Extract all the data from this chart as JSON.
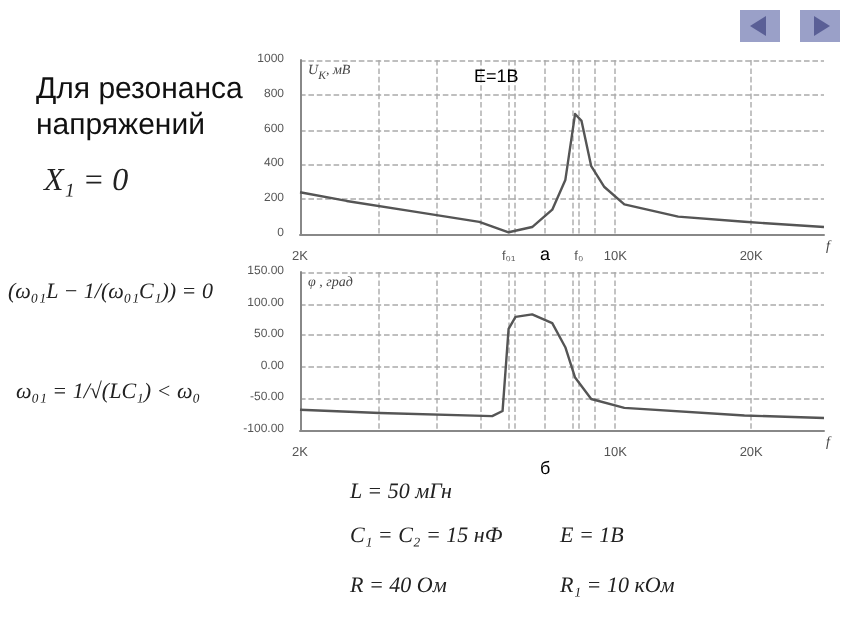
{
  "chart_data": [
    {
      "type": "line",
      "title": "Для резонанса напряжений",
      "ylabel": "U$_{K}$, мВ",
      "xlabel": "f",
      "annotations": [
        "E=1В",
        "а",
        "X₁ = 0",
        "(ω₀₁L − 1/(ω₀₁C₁)) = 0",
        "ω₀₁ = 1/√(LC₁) < ω₀"
      ],
      "x": [
        2000,
        2537,
        3557,
        4993,
        5799,
        6540,
        7246,
        7746,
        8142,
        8414,
        8841,
        9455,
        10468,
        13780,
        19322,
        29000
      ],
      "series": [
        {
          "color": "#555555",
          "values": [
            240,
            190,
            130,
            70,
            10,
            40,
            140,
            310,
            690,
            650,
            390,
            270,
            170,
            100,
            70,
            40
          ]
        }
      ],
      "xlim": [
        2000,
        29000
      ],
      "log": "x",
      "xticks": [
        {
          "value": 2000,
          "label": "2K"
        },
        {
          "value": 3000,
          "label": null
        },
        {
          "value": 4000,
          "label": null
        },
        {
          "value": 5000,
          "label": null
        },
        {
          "value": 5800,
          "label": "f₀₁"
        },
        {
          "value": 6000,
          "label": null
        },
        {
          "value": 7000,
          "label": null
        },
        {
          "value": 8000,
          "label": null
        },
        {
          "value": 8300,
          "label": "f₀"
        },
        {
          "value": 9000,
          "label": null
        },
        {
          "value": 10000,
          "label": "10K"
        },
        {
          "value": 20000,
          "label": "20K"
        }
      ],
      "ylim": [
        0,
        1000
      ],
      "yticks": [
        0,
        200,
        400,
        600,
        800,
        1000
      ],
      "grid": true,
      "marker": "none",
      "line_style": "solid"
    },
    {
      "type": "line",
      "ylabel": "φ , град",
      "xlabel": "f",
      "annotations": [
        "б",
        "L = 50 мГн",
        "C₁ = C₂ = 15 нФ",
        "E = 1В",
        "R = 40 Ом",
        "R₁ = 10 кОм"
      ],
      "x": [
        2000,
        3003,
        5333,
        5623,
        5799,
        6008,
        6540,
        7246,
        7746,
        8142,
        8841,
        10468,
        19322,
        29000
      ],
      "series": [
        {
          "color": "#555555",
          "values": [
            -68,
            -73,
            -78,
            -70,
            60,
            79,
            83,
            69,
            31,
            -17,
            -51,
            -65,
            -77,
            -81
          ]
        }
      ],
      "xlim": [
        2000,
        29000
      ],
      "log": "x",
      "xticks": [
        {
          "value": 2000,
          "label": "2K"
        },
        {
          "value": 3000,
          "label": null
        },
        {
          "value": 4000,
          "label": null
        },
        {
          "value": 5000,
          "label": null
        },
        {
          "value": 5800,
          "label": null
        },
        {
          "value": 6000,
          "label": null
        },
        {
          "value": 7000,
          "label": null
        },
        {
          "value": 8000,
          "label": null
        },
        {
          "value": 8300,
          "label": null
        },
        {
          "value": 9000,
          "label": null
        },
        {
          "value": 10000,
          "label": "10K"
        },
        {
          "value": 20000,
          "label": "20K"
        }
      ],
      "ylim": [
        -100,
        150
      ],
      "yticks": [
        {
          "value": -100,
          "label": "-100.00"
        },
        {
          "value": -50,
          "label": "-50.00"
        },
        {
          "value": 0,
          "label": "0.00"
        },
        {
          "value": 50,
          "label": "50.00"
        },
        {
          "value": 100,
          "label": "100.00"
        },
        {
          "value": 150,
          "label": "150.00"
        }
      ],
      "grid": true,
      "marker": "none",
      "line_style": "solid"
    }
  ]
}
